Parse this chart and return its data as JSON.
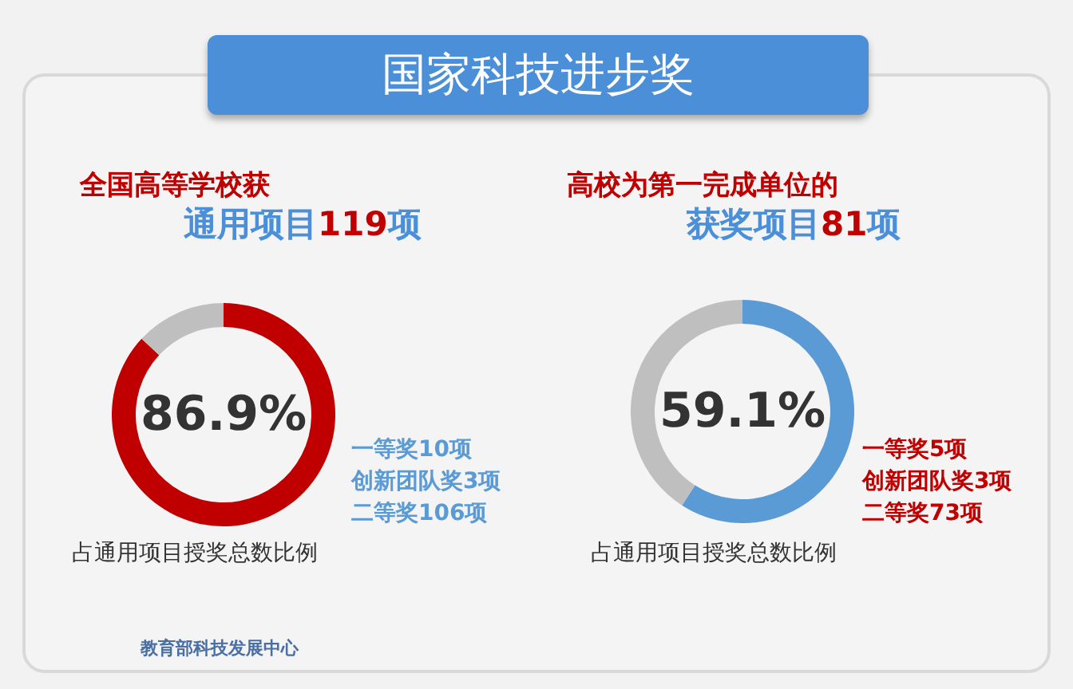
{
  "chart_data": [
    {
      "type": "other",
      "title": "国家科技进步奖",
      "annotations": [
        "教育部科技发展中心"
      ]
    },
    {
      "type": "donut",
      "title": "全国高等学校获",
      "subtitle": "通用项目119项",
      "categories": [
        null,
        null
      ],
      "values": [
        86.9,
        13.1
      ],
      "colors": [
        "#c00000",
        "#bfbfbf"
      ],
      "annotations": [
        "86.9%",
        "一等奖10项",
        "创新团队奖3项",
        "二等奖106项",
        "占通用项目授奖总数比例"
      ]
    },
    {
      "type": "donut",
      "title": "高校为第一完成单位的",
      "subtitle": "获奖项目81项",
      "categories": [
        null,
        null
      ],
      "values": [
        59.1,
        40.9
      ],
      "colors": [
        "#5b9bd5",
        "#bfbfbf"
      ],
      "annotations": [
        "59.1%",
        "一等奖5项",
        "创新团队奖3项",
        "二等奖73项",
        "占通用项目授奖总数比例"
      ]
    }
  ]
}
